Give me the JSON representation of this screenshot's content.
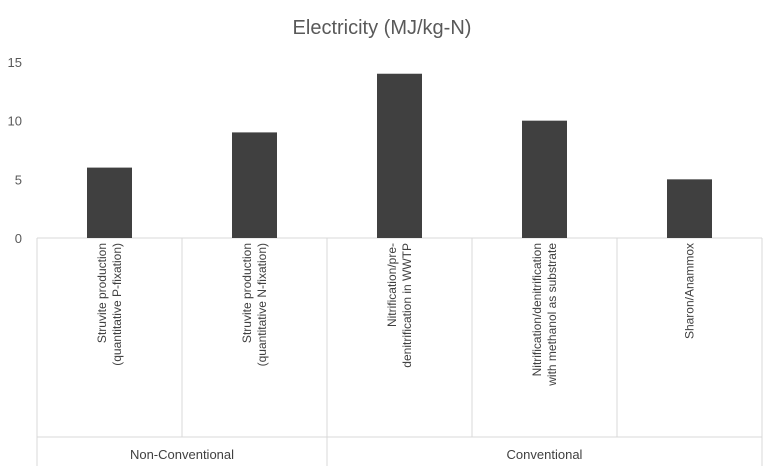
{
  "chart_data": {
    "type": "bar",
    "title": "Electricity (MJ/kg-N)",
    "xlabel": "",
    "ylabel": "",
    "ylim": [
      0,
      15
    ],
    "yticks": [
      0,
      5,
      10,
      15
    ],
    "grid": false,
    "legend": "none",
    "bar_color": "#404040",
    "categories": [
      {
        "lines": [
          "Struvite production",
          "(quantitative P-fixation)"
        ],
        "group": 0
      },
      {
        "lines": [
          "Struvite production",
          "(quantitative N-fixation)"
        ],
        "group": 0
      },
      {
        "lines": [
          "Nitrification/pre-",
          "denitrification in WWTP"
        ],
        "group": 1
      },
      {
        "lines": [
          "Nitrification/denitrification",
          "with methanol as substrate"
        ],
        "group": 1
      },
      {
        "lines": [
          "Sharon/Anammox"
        ],
        "group": 1
      }
    ],
    "values": [
      6,
      9,
      14,
      10,
      5
    ],
    "groups": [
      "Non-Conventional",
      "Conventional"
    ]
  }
}
